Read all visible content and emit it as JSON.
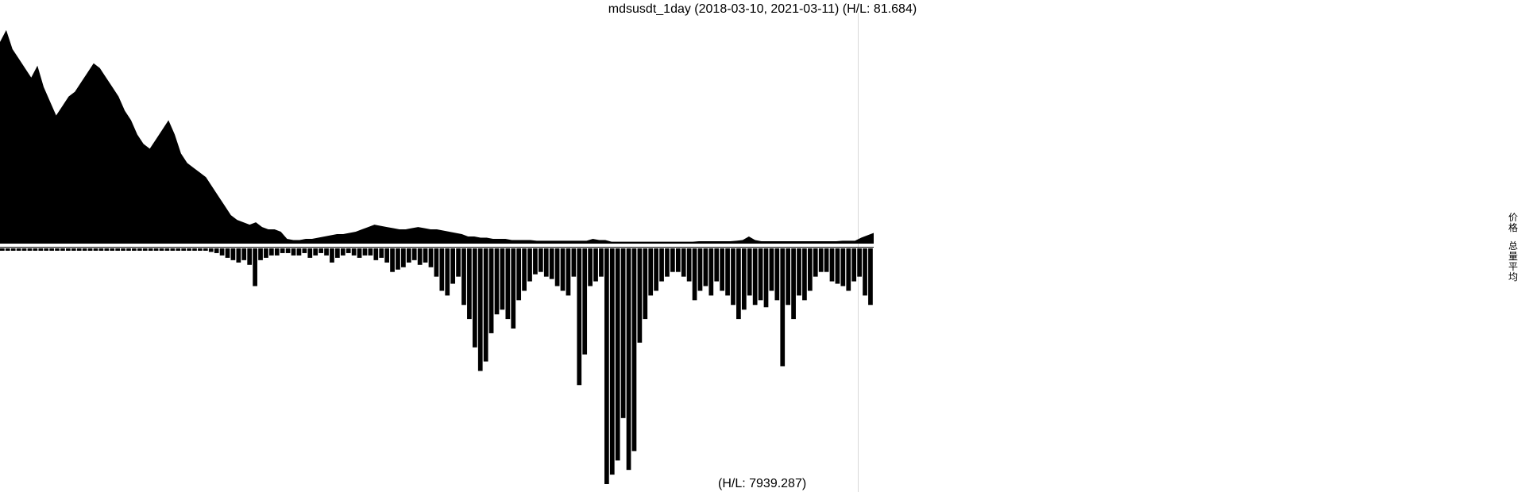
{
  "chart_data": {
    "type": "area",
    "title": "mdsusdt_1day (2018-03-10, 2021-03-11) (H/L: 81.684)",
    "start_date": "2018-03-10",
    "end_date": "2021-03-11",
    "grid": false,
    "price_panel": {
      "label": "价格",
      "hl_ratio": 81.684,
      "ylim": [
        0,
        1
      ],
      "series": [
        {
          "values": [
            0.85,
            0.9,
            0.82,
            0.78,
            0.74,
            0.7,
            0.75,
            0.66,
            0.6,
            0.54,
            0.58,
            0.62,
            0.64,
            0.68,
            0.72,
            0.76,
            0.74,
            0.7,
            0.66,
            0.62,
            0.56,
            0.52,
            0.46,
            0.42,
            0.4,
            0.44,
            0.48,
            0.52,
            0.46,
            0.38,
            0.34,
            0.32,
            0.3,
            0.28,
            0.24,
            0.2,
            0.16,
            0.12,
            0.1,
            0.09,
            0.08,
            0.09,
            0.07,
            0.06,
            0.06,
            0.05,
            0.02,
            0.015,
            0.015,
            0.02,
            0.02,
            0.025,
            0.03,
            0.035,
            0.04,
            0.04,
            0.045,
            0.05,
            0.06,
            0.07,
            0.08,
            0.075,
            0.07,
            0.065,
            0.06,
            0.06,
            0.065,
            0.07,
            0.065,
            0.06,
            0.06,
            0.055,
            0.05,
            0.045,
            0.04,
            0.03,
            0.03,
            0.025,
            0.025,
            0.02,
            0.02,
            0.02,
            0.015,
            0.015,
            0.015,
            0.015,
            0.012,
            0.012,
            0.012,
            0.012,
            0.012,
            0.012,
            0.012,
            0.012,
            0.012,
            0.02,
            0.015,
            0.015,
            0.008,
            0.008,
            0.008,
            0.008,
            0.008,
            0.008,
            0.008,
            0.008,
            0.008,
            0.008,
            0.008,
            0.008,
            0.008,
            0.008,
            0.01,
            0.01,
            0.01,
            0.01,
            0.01,
            0.01,
            0.012,
            0.015,
            0.03,
            0.015,
            0.01,
            0.01,
            0.01,
            0.01,
            0.01,
            0.01,
            0.01,
            0.01,
            0.01,
            0.01,
            0.01,
            0.01,
            0.01,
            0.012,
            0.012,
            0.012,
            0.025,
            0.035,
            0.045
          ]
        }
      ]
    },
    "volume_panel": {
      "label": "总量平均",
      "hl_ratio": 7939.287,
      "label_text": "(H/L: 7939.287)",
      "ylim": [
        0,
        1
      ],
      "series": [
        {
          "values": [
            0.01,
            0.01,
            0.01,
            0.01,
            0.01,
            0.01,
            0.01,
            0.01,
            0.01,
            0.01,
            0.01,
            0.01,
            0.01,
            0.01,
            0.01,
            0.01,
            0.01,
            0.01,
            0.01,
            0.01,
            0.01,
            0.01,
            0.01,
            0.01,
            0.01,
            0.01,
            0.01,
            0.01,
            0.01,
            0.01,
            0.01,
            0.01,
            0.01,
            0.01,
            0.01,
            0.01,
            0.01,
            0.01,
            0.015,
            0.02,
            0.03,
            0.04,
            0.05,
            0.06,
            0.05,
            0.07,
            0.16,
            0.05,
            0.04,
            0.03,
            0.03,
            0.02,
            0.02,
            0.03,
            0.03,
            0.02,
            0.04,
            0.03,
            0.02,
            0.03,
            0.06,
            0.04,
            0.03,
            0.02,
            0.03,
            0.04,
            0.03,
            0.03,
            0.05,
            0.04,
            0.06,
            0.1,
            0.09,
            0.08,
            0.06,
            0.05,
            0.07,
            0.06,
            0.08,
            0.12,
            0.18,
            0.2,
            0.15,
            0.12,
            0.24,
            0.3,
            0.42,
            0.52,
            0.48,
            0.36,
            0.28,
            0.26,
            0.3,
            0.34,
            0.22,
            0.18,
            0.14,
            0.11,
            0.1,
            0.12,
            0.13,
            0.16,
            0.18,
            0.2,
            0.12,
            0.58,
            0.45,
            0.16,
            0.14,
            0.12,
            1.0,
            0.96,
            0.9,
            0.72,
            0.94,
            0.86,
            0.4,
            0.3,
            0.2,
            0.18,
            0.14,
            0.12,
            0.1,
            0.1,
            0.12,
            0.14,
            0.22,
            0.18,
            0.16,
            0.2,
            0.14,
            0.18,
            0.2,
            0.24,
            0.3,
            0.26,
            0.2,
            0.24,
            0.22,
            0.25,
            0.18,
            0.22,
            0.5,
            0.24,
            0.3,
            0.2,
            0.22,
            0.18,
            0.12,
            0.1,
            0.1,
            0.14,
            0.15,
            0.16,
            0.18,
            0.14,
            0.12,
            0.2,
            0.24
          ]
        }
      ]
    }
  }
}
